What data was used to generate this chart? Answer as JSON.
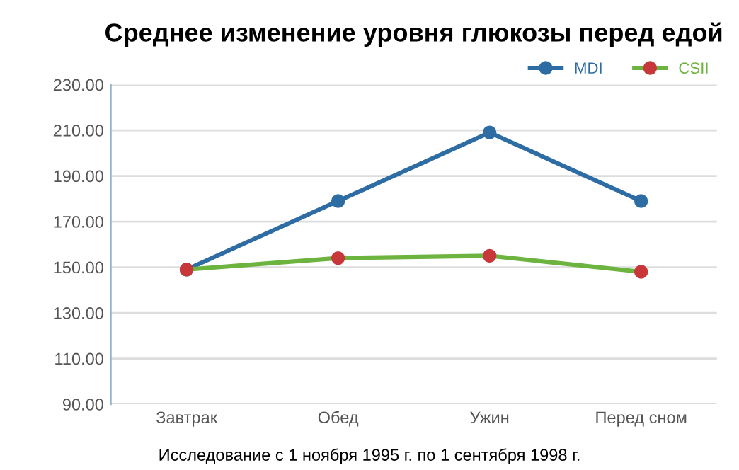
{
  "chart_data": {
    "type": "line",
    "title": "Среднее изменение уровня глюкозы перед едой",
    "categories": [
      "Завтрак",
      "Обед",
      "Ужин",
      "Перед сном"
    ],
    "series": [
      {
        "name": "MDI",
        "color": "#2e6ca4",
        "values": [
          149,
          179,
          209,
          179
        ]
      },
      {
        "name": "CSII",
        "color": "#6db33f",
        "colors": [
          "#c8373a",
          "#c8373a",
          "#c8373a",
          "#c8373a"
        ],
        "values": [
          149,
          154,
          155,
          148
        ]
      }
    ],
    "ylim": [
      90,
      230
    ],
    "yticks": [
      {
        "value": 90,
        "label": "90.00"
      },
      {
        "value": 110,
        "label": "110.00"
      },
      {
        "value": 130,
        "label": "130.00"
      },
      {
        "value": 150,
        "label": "150.00"
      },
      {
        "value": 170,
        "label": "170.00"
      },
      {
        "value": 190,
        "label": "190.00"
      },
      {
        "value": 210,
        "label": "210.00"
      },
      {
        "value": 230,
        "label": "230.00"
      }
    ],
    "grid": "y",
    "legend": "top right",
    "marker": "circle",
    "line_style": "solid",
    "annotations": [
      "Исследование с 1 ноября 1995 г. по 1 сентября 1998 г."
    ]
  }
}
